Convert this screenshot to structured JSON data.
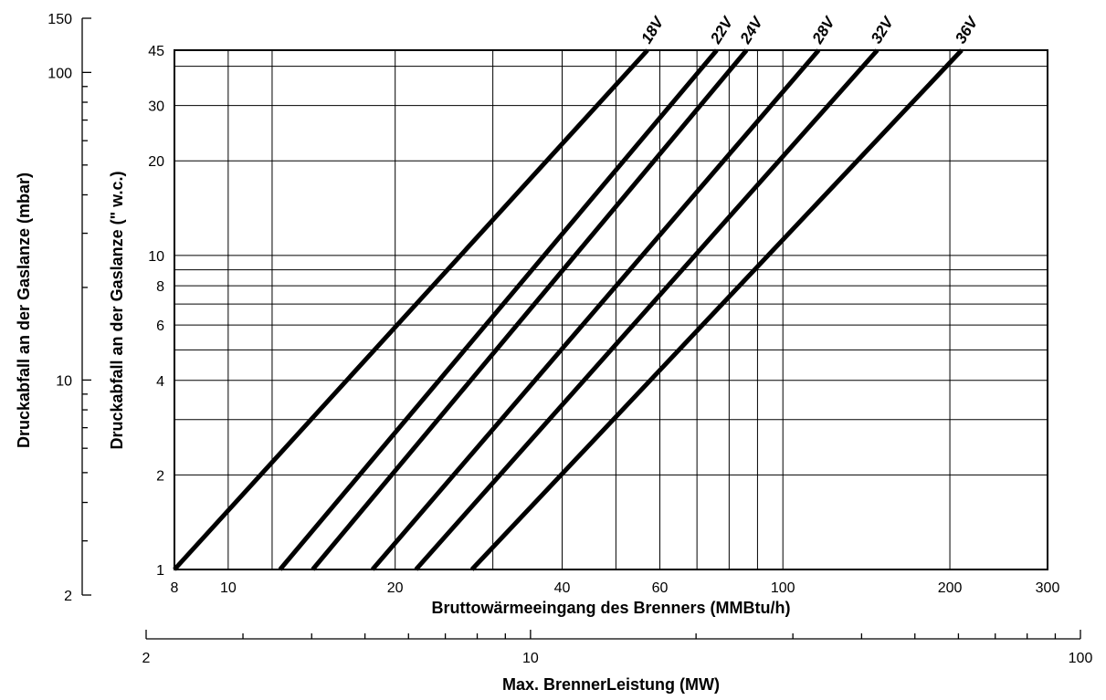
{
  "chart_data": {
    "type": "line",
    "xlabel": "Bruttowärmeeingang des Brenners (MMBtu/h)",
    "ylabel": "Druckabfall an der Gaslanze (\" w.c.)",
    "x_scale": "log",
    "y_scale": "log",
    "xlim": [
      8,
      300
    ],
    "ylim": [
      1,
      45
    ],
    "grid": true,
    "x_ticks": [
      {
        "value": 8,
        "label": "8"
      },
      {
        "value": 10,
        "label": "10"
      },
      {
        "value": 20,
        "label": "20"
      },
      {
        "value": 40,
        "label": "40"
      },
      {
        "value": 60,
        "label": "60"
      },
      {
        "value": 100,
        "label": "100"
      },
      {
        "value": 200,
        "label": "200"
      },
      {
        "value": 300,
        "label": "300"
      }
    ],
    "x_gridlines": [
      10,
      12,
      20,
      30,
      40,
      50,
      60,
      70,
      80,
      90,
      100,
      200
    ],
    "y_ticks": [
      {
        "value": 1,
        "label": "1"
      },
      {
        "value": 2,
        "label": "2"
      },
      {
        "value": 4,
        "label": "4"
      },
      {
        "value": 6,
        "label": "6"
      },
      {
        "value": 8,
        "label": "8"
      },
      {
        "value": 10,
        "label": "10"
      },
      {
        "value": 20,
        "label": "20"
      },
      {
        "value": 30,
        "label": "30"
      },
      {
        "value": 45,
        "label": "45"
      }
    ],
    "y_gridlines": [
      2,
      3,
      4,
      5,
      6,
      7,
      8,
      9,
      10,
      20,
      30,
      40
    ],
    "series": [
      {
        "name": "18V",
        "x": [
          8.0,
          57.0
        ],
        "y": [
          1,
          45
        ]
      },
      {
        "name": "22V",
        "x": [
          12.4,
          76.0
        ],
        "y": [
          1,
          45
        ]
      },
      {
        "name": "24V",
        "x": [
          14.2,
          86.0
        ],
        "y": [
          1,
          45
        ]
      },
      {
        "name": "28V",
        "x": [
          18.2,
          116.0
        ],
        "y": [
          1,
          45
        ]
      },
      {
        "name": "32V",
        "x": [
          21.8,
          148.0
        ],
        "y": [
          1,
          45
        ]
      },
      {
        "name": "36V",
        "x": [
          27.5,
          210.0
        ],
        "y": [
          1,
          45
        ]
      }
    ],
    "secondary_y_axis": {
      "label": "Druckabfall an der Gaslanze (mbar)",
      "scale": "log",
      "ylim": [
        2,
        150
      ],
      "ticks": [
        {
          "value": 2,
          "label": "2"
        },
        {
          "value": 10,
          "label": "10"
        },
        {
          "value": 100,
          "label": "100"
        },
        {
          "value": 150,
          "label": "150"
        }
      ],
      "minor_ticks": [
        3,
        4,
        5,
        6,
        7,
        8,
        9,
        20,
        30,
        40,
        50,
        60,
        70,
        80,
        90
      ]
    },
    "secondary_x_axis": {
      "label": "Max. BrennerLeistung (MW)",
      "scale": "log",
      "xlim": [
        2,
        100
      ],
      "ticks": [
        {
          "value": 2,
          "label": "2"
        },
        {
          "value": 10,
          "label": "10"
        },
        {
          "value": 100,
          "label": "100"
        }
      ],
      "minor_ticks": [
        3,
        4,
        5,
        6,
        7,
        8,
        9,
        20,
        30,
        40,
        50,
        60,
        70,
        80,
        90
      ]
    }
  }
}
